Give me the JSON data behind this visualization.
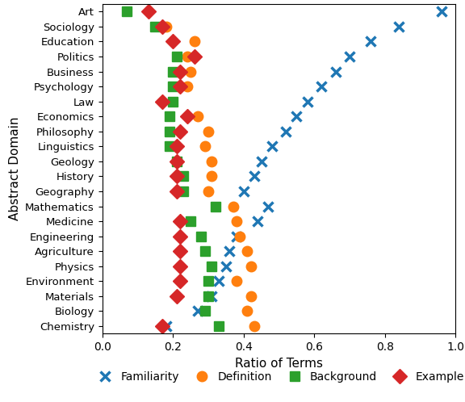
{
  "domains": [
    "Art",
    "Sociology",
    "Education",
    "Politics",
    "Business",
    "Psychology",
    "Law",
    "Economics",
    "Philosophy",
    "Linguistics",
    "Geology",
    "History",
    "Geography",
    "Mathematics",
    "Medicine",
    "Engineering",
    "Agriculture",
    "Physics",
    "Environment",
    "Materials",
    "Biology",
    "Chemistry"
  ],
  "familiarity": [
    0.96,
    0.84,
    0.76,
    0.7,
    0.66,
    0.62,
    0.58,
    0.55,
    0.52,
    0.48,
    0.45,
    0.43,
    0.4,
    0.47,
    0.44,
    0.38,
    0.36,
    0.35,
    0.33,
    0.31,
    0.27,
    0.18
  ],
  "definition": [
    null,
    0.18,
    0.26,
    0.24,
    0.25,
    0.24,
    null,
    0.27,
    0.3,
    0.29,
    0.31,
    0.31,
    0.3,
    0.37,
    0.38,
    0.39,
    0.41,
    0.42,
    0.38,
    0.42,
    0.41,
    0.43
  ],
  "background": [
    0.07,
    0.15,
    null,
    0.21,
    0.2,
    0.2,
    0.2,
    0.19,
    0.19,
    0.19,
    0.21,
    0.23,
    0.23,
    0.32,
    0.25,
    0.28,
    0.29,
    0.31,
    0.3,
    0.3,
    0.29,
    0.33
  ],
  "example": [
    0.13,
    0.17,
    0.2,
    0.26,
    0.22,
    0.22,
    0.17,
    0.24,
    0.22,
    0.21,
    0.21,
    0.21,
    0.21,
    null,
    0.22,
    0.22,
    0.22,
    0.22,
    0.22,
    0.21,
    null,
    0.17
  ],
  "colors": {
    "familiarity": "#1f77b4",
    "definition": "#ff7f0e",
    "background": "#2ca02c",
    "example": "#d62728"
  },
  "xlabel": "Ratio of Terms",
  "ylabel": "Abstract Domain",
  "xlim": [
    0.0,
    1.0
  ],
  "figsize": [
    5.76,
    4.98
  ],
  "dpi": 100
}
